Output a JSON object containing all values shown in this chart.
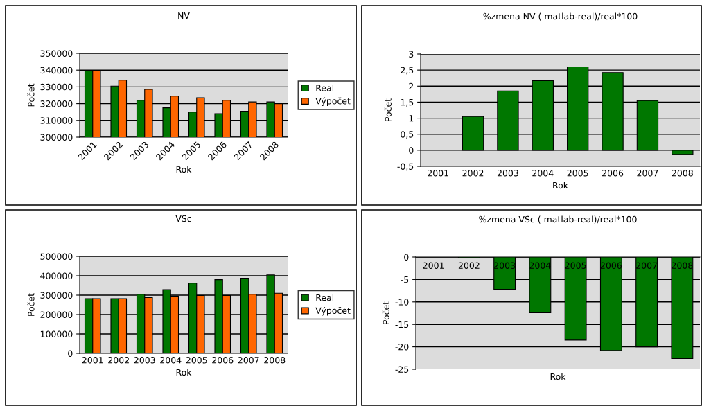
{
  "chart_data": [
    {
      "type": "bar",
      "title": "NV",
      "xlabel": "Rok",
      "ylabel": "Počet",
      "categories": [
        "2001",
        "2002",
        "2003",
        "2004",
        "2005",
        "2006",
        "2007",
        "2008"
      ],
      "series": [
        {
          "name": "Real",
          "color": "#007700",
          "values": [
            339500,
            330500,
            322000,
            317500,
            315000,
            314000,
            315500,
            321000
          ]
        },
        {
          "name": "Výpočet",
          "color": "#ff6600",
          "values": [
            339500,
            334000,
            328500,
            324500,
            323500,
            322000,
            321000,
            320000
          ]
        }
      ],
      "ylim": [
        300000,
        350000
      ],
      "yticks": [
        300000,
        310000,
        320000,
        330000,
        340000,
        350000
      ],
      "grid": "y",
      "legend": "right"
    },
    {
      "type": "bar",
      "title": "%zmena NV ( matlab-real)/real*100",
      "xlabel": "Rok",
      "ylabel": "Počet",
      "categories": [
        "2001",
        "2002",
        "2003",
        "2004",
        "2005",
        "2006",
        "2007",
        "2008"
      ],
      "series": [
        {
          "color": "#007700",
          "values": [
            0,
            1.05,
            1.85,
            2.17,
            2.6,
            2.42,
            1.55,
            -0.13
          ]
        }
      ],
      "ylim": [
        -0.5,
        3
      ],
      "yticks": [
        {
          "value": -0.5,
          "label": "-0,5"
        },
        0,
        {
          "value": 0.5,
          "label": "0,5"
        },
        1,
        {
          "value": 1.5,
          "label": "1,5"
        },
        2,
        {
          "value": 2.5,
          "label": "2,5"
        },
        3
      ],
      "grid": "y"
    },
    {
      "type": "bar",
      "title": "VSc",
      "xlabel": "Rok",
      "ylabel": "Počet",
      "categories": [
        "2001",
        "2002",
        "2003",
        "2004",
        "2005",
        "2006",
        "2007",
        "2008"
      ],
      "series": [
        {
          "name": "Real",
          "color": "#007700",
          "values": [
            282000,
            282000,
            305000,
            328000,
            362000,
            380000,
            387000,
            404000
          ]
        },
        {
          "name": "Výpočet",
          "color": "#ff6600",
          "values": [
            282000,
            282000,
            288000,
            295000,
            298000,
            298000,
            305000,
            310000
          ]
        }
      ],
      "ylim": [
        0,
        500000
      ],
      "yticks": [
        0,
        100000,
        200000,
        300000,
        400000,
        500000
      ],
      "grid": "y",
      "legend": "right"
    },
    {
      "type": "bar",
      "title": "%zmena VSc ( matlab-real)/real*100",
      "xlabel": "Rok",
      "ylabel": "Počet",
      "categories": [
        "2001",
        "2002",
        "2003",
        "2004",
        "2005",
        "2006",
        "2007",
        "2008"
      ],
      "series": [
        {
          "color": "#007700",
          "values": [
            0,
            -0.2,
            -7.2,
            -12.4,
            -18.5,
            -20.8,
            -20,
            -22.6
          ]
        }
      ],
      "ylim": [
        -25,
        0
      ],
      "yticks": [
        -25,
        -20,
        -15,
        -10,
        -5,
        0
      ],
      "grid": "y"
    }
  ]
}
